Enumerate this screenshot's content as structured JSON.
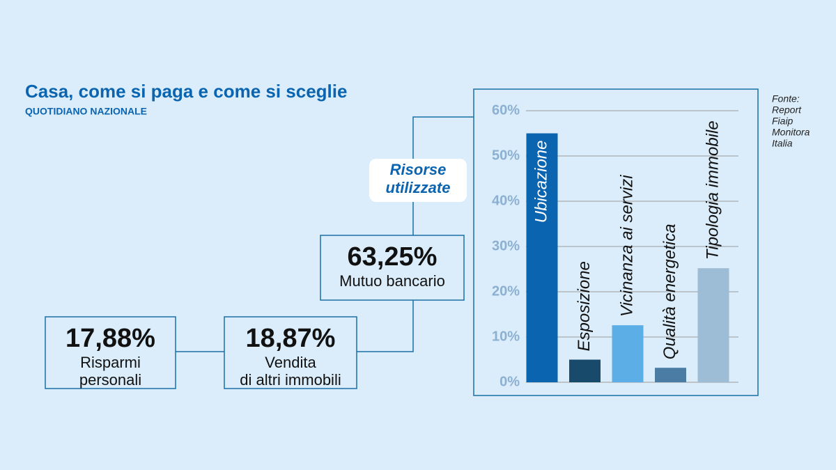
{
  "header": {
    "title": "Casa, come si paga e come si sceglie",
    "subtitle": "QUOTIDIANO NAZIONALE"
  },
  "source": {
    "lines": [
      "Fonte:",
      "Report",
      "Fiaip",
      "Monitora",
      "Italia"
    ]
  },
  "callout": {
    "lines": [
      "Risorse",
      "utilizzate"
    ]
  },
  "boxes": [
    {
      "value": "63,25%",
      "lines": [
        "Mutuo bancario"
      ]
    },
    {
      "value": "17,88%",
      "lines": [
        "Risparmi",
        "personali"
      ]
    },
    {
      "value": "18,87%",
      "lines": [
        "Vendita",
        "di altri immobili"
      ]
    }
  ],
  "chart_data": {
    "type": "bar",
    "categories": [
      "Ubicazione",
      "Esposizione",
      "Vicinanza ai servizi",
      "Qualità energetica",
      "Tipologia immobile"
    ],
    "values": [
      55,
      5,
      12.6,
      3.2,
      25.2
    ],
    "colors": [
      "#0a64b0",
      "#184a6c",
      "#5caee6",
      "#4a7ca4",
      "#9dbdd6"
    ],
    "ylim": [
      0,
      60
    ],
    "yticks": [
      {
        "value": 0,
        "label": "0%"
      },
      {
        "value": 10,
        "label": "10%"
      },
      {
        "value": 20,
        "label": "20%"
      },
      {
        "value": 30,
        "label": "30%"
      },
      {
        "value": 40,
        "label": "40%"
      },
      {
        "value": 50,
        "label": "50%"
      },
      {
        "value": 60,
        "label": "60%"
      }
    ],
    "grid": true
  }
}
